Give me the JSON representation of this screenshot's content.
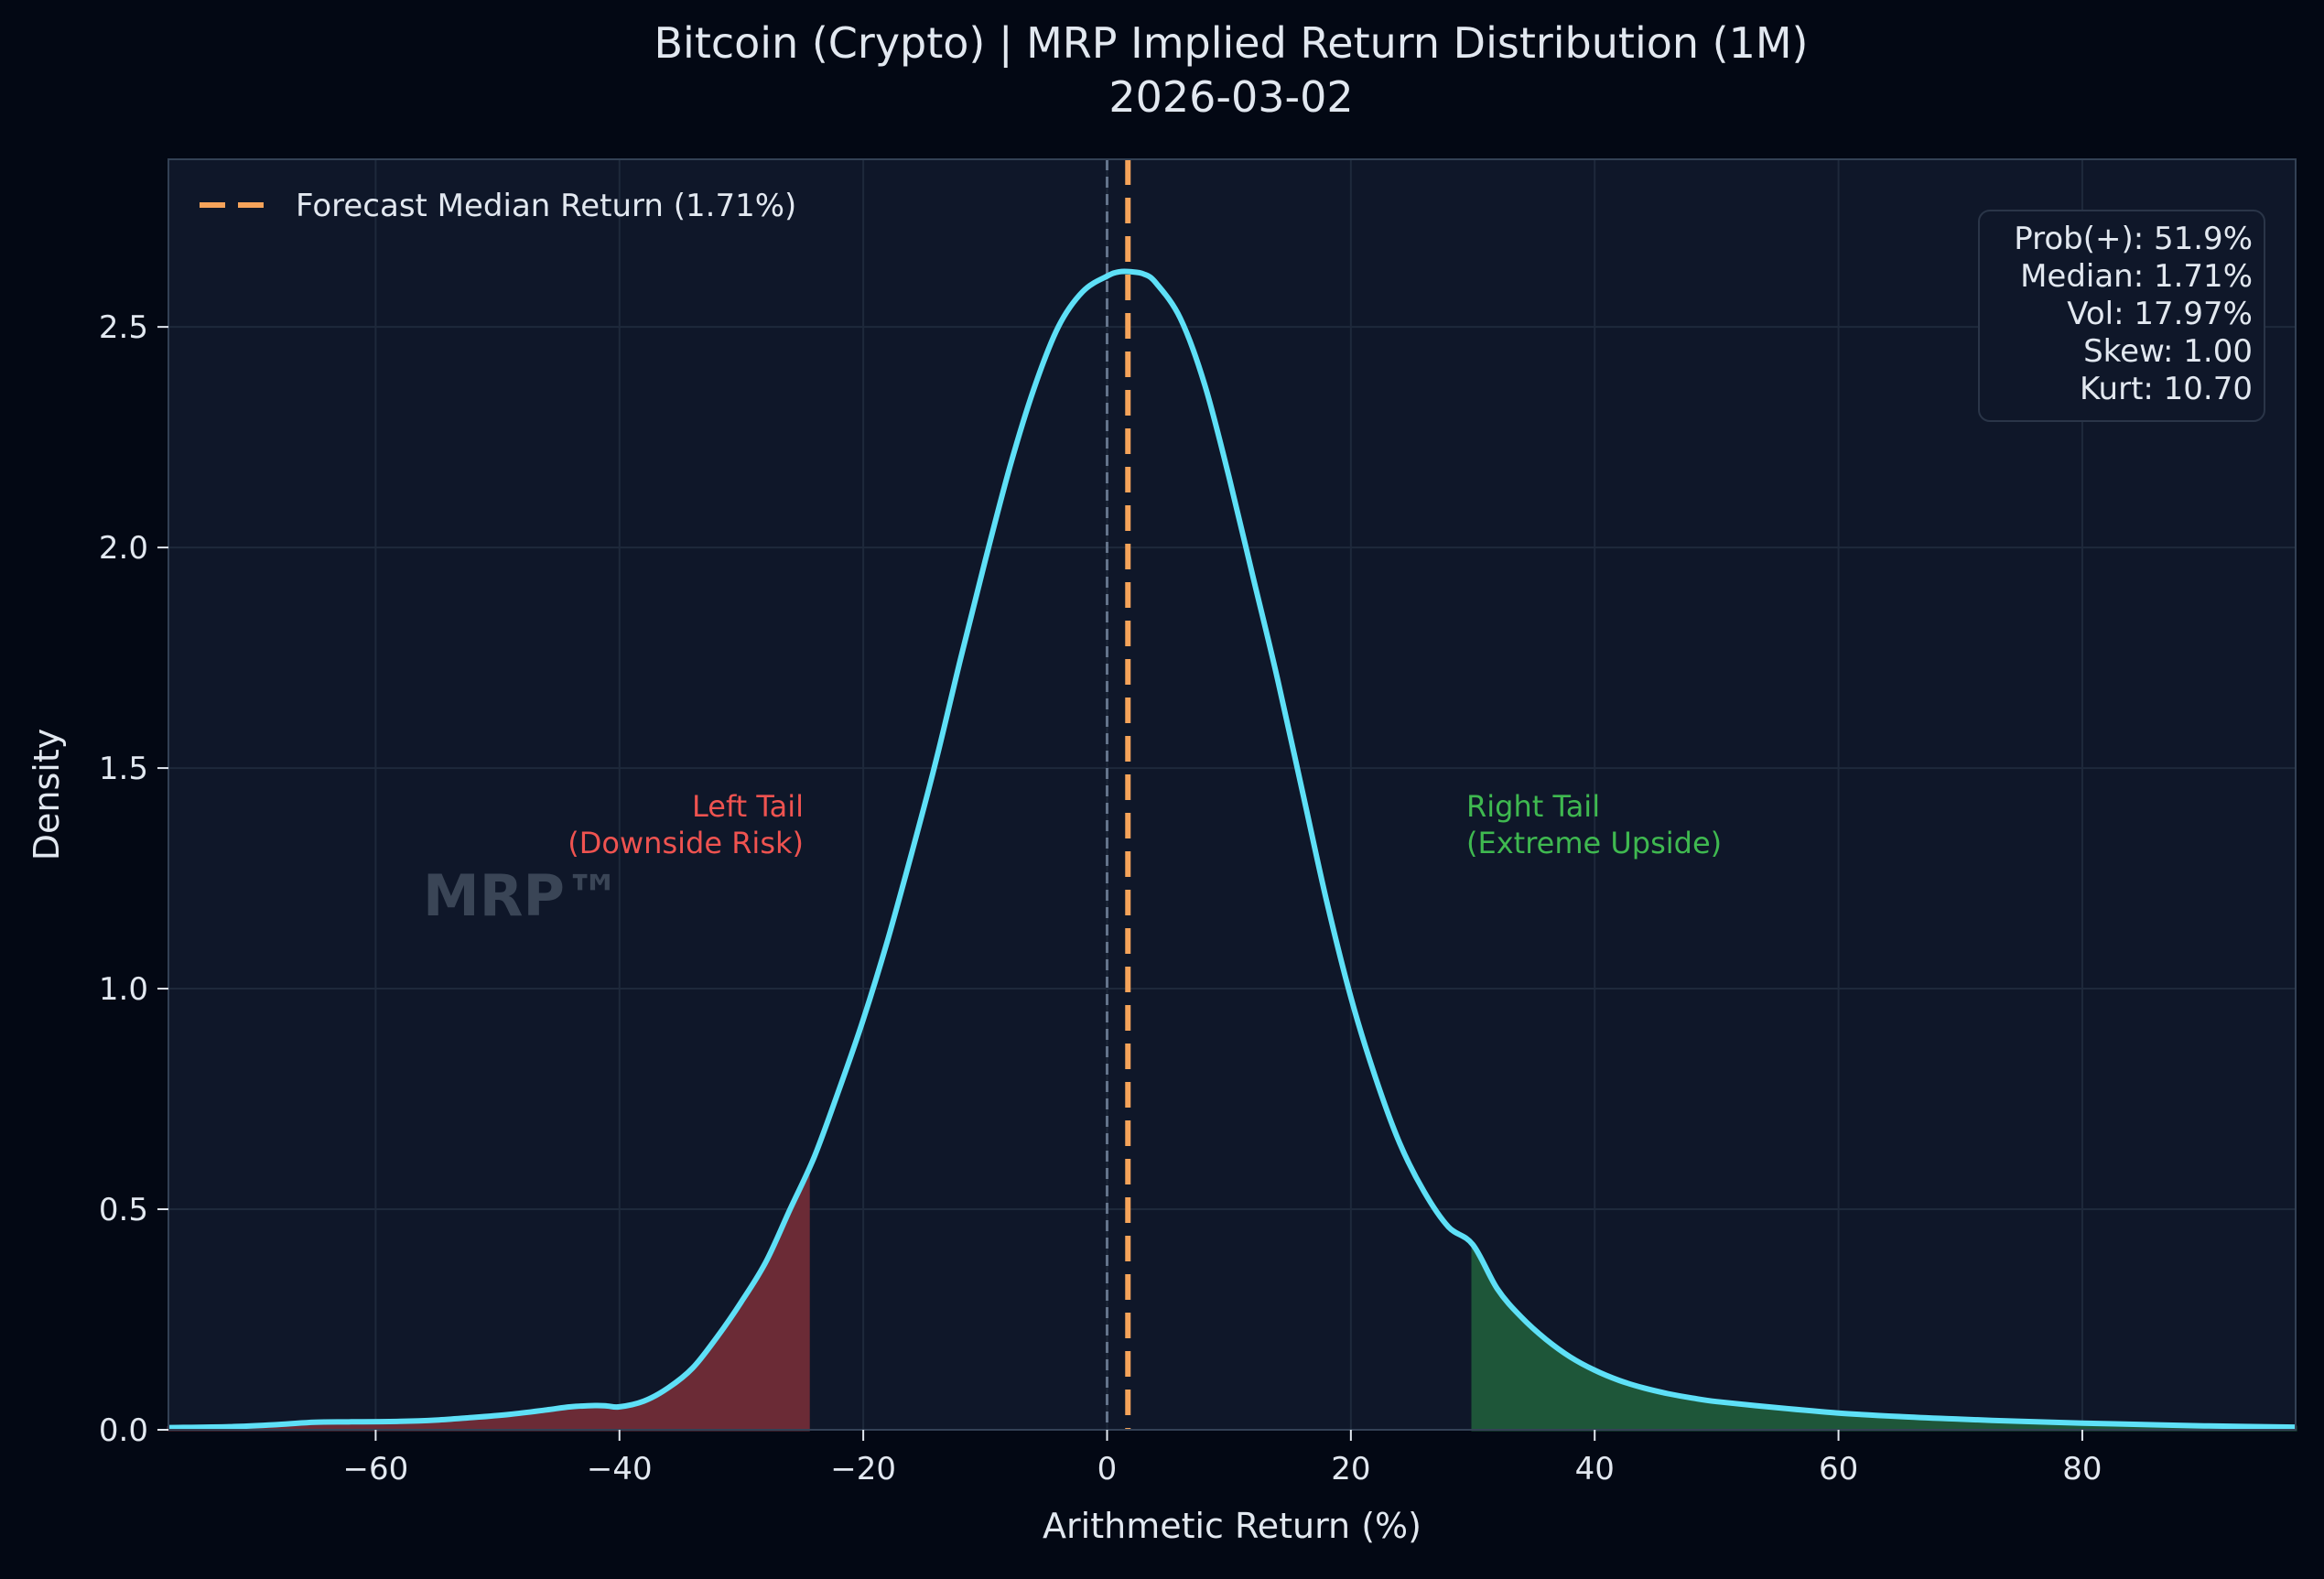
{
  "colors": {
    "page_background": "#030814",
    "plot_background": "#0f1729",
    "grid": "#1e293b",
    "axis": "#334155",
    "text": "#e2e8f0",
    "curve": "#5ee0f7",
    "median_line": "#f5a35a",
    "zero_line": "#64748b",
    "left_tail_fill": "#6b2b36",
    "left_tail_text": "#ef5350",
    "right_tail_fill": "#1e5639",
    "right_tail_text": "#3fb950",
    "watermark": "#3a4556"
  },
  "chart_data": {
    "type": "area",
    "title": "Bitcoin (Crypto) | MRP Implied Return Distribution (1M)",
    "subtitle": "2026-03-02",
    "xlabel": "Arithmetic Return (%)",
    "ylabel": "Density",
    "xlim": [
      -77,
      97.5
    ],
    "ylim": [
      0,
      2.88
    ],
    "grid": true,
    "x_ticks": [
      -60,
      -40,
      -20,
      0,
      20,
      40,
      60,
      80
    ],
    "x_tick_labels": [
      "−60",
      "−40",
      "−20",
      "0",
      "20",
      "40",
      "60",
      "80"
    ],
    "y_ticks": [
      0,
      0.5,
      1.0,
      1.5,
      2.0,
      2.5
    ],
    "y_tick_labels": [
      "0.0",
      "0.5",
      "1.0",
      "1.5",
      "2.0",
      "2.5"
    ],
    "legend": {
      "position": "top-left",
      "entries": [
        {
          "label": "Forecast Median Return (1.71%)",
          "style": "dashed",
          "color": "#f5a35a"
        }
      ]
    },
    "series": [
      {
        "type": "line",
        "points": [
          [
            -77,
            0.005
          ],
          [
            -72,
            0.007
          ],
          [
            -68,
            0.012
          ],
          [
            -65,
            0.017
          ],
          [
            -62,
            0.018
          ],
          [
            -58,
            0.019
          ],
          [
            -55,
            0.022
          ],
          [
            -52,
            0.028
          ],
          [
            -49,
            0.035
          ],
          [
            -46,
            0.045
          ],
          [
            -44,
            0.052
          ],
          [
            -42,
            0.055
          ],
          [
            -41,
            0.054
          ],
          [
            -40,
            0.052
          ],
          [
            -38,
            0.065
          ],
          [
            -36,
            0.095
          ],
          [
            -34,
            0.14
          ],
          [
            -32,
            0.21
          ],
          [
            -30,
            0.29
          ],
          [
            -28,
            0.38
          ],
          [
            -26,
            0.5
          ],
          [
            -24,
            0.62
          ],
          [
            -22,
            0.77
          ],
          [
            -20,
            0.93
          ],
          [
            -18,
            1.11
          ],
          [
            -16,
            1.31
          ],
          [
            -14,
            1.52
          ],
          [
            -12,
            1.75
          ],
          [
            -10,
            1.97
          ],
          [
            -8,
            2.18
          ],
          [
            -6,
            2.36
          ],
          [
            -4,
            2.5
          ],
          [
            -2,
            2.58
          ],
          [
            0,
            2.615
          ],
          [
            1,
            2.625
          ],
          [
            2,
            2.625
          ],
          [
            3,
            2.62
          ],
          [
            4,
            2.6
          ],
          [
            6,
            2.52
          ],
          [
            8,
            2.37
          ],
          [
            10,
            2.16
          ],
          [
            12,
            1.93
          ],
          [
            14,
            1.7
          ],
          [
            16,
            1.45
          ],
          [
            18,
            1.2
          ],
          [
            20,
            0.98
          ],
          [
            22,
            0.8
          ],
          [
            24,
            0.65
          ],
          [
            26,
            0.54
          ],
          [
            28,
            0.46
          ],
          [
            30,
            0.42
          ],
          [
            32,
            0.32
          ],
          [
            34,
            0.255
          ],
          [
            36,
            0.205
          ],
          [
            38,
            0.165
          ],
          [
            40,
            0.135
          ],
          [
            42,
            0.112
          ],
          [
            44,
            0.095
          ],
          [
            46,
            0.082
          ],
          [
            48,
            0.072
          ],
          [
            50,
            0.064
          ],
          [
            55,
            0.05
          ],
          [
            60,
            0.038
          ],
          [
            65,
            0.03
          ],
          [
            70,
            0.024
          ],
          [
            75,
            0.019
          ],
          [
            80,
            0.015
          ],
          [
            85,
            0.012
          ],
          [
            90,
            0.009
          ],
          [
            97.5,
            0.006
          ]
        ]
      }
    ],
    "shaded_regions": [
      {
        "name": "Left Tail",
        "x_from": -77,
        "x_to": -24.5
      },
      {
        "name": "Right Tail",
        "x_from": 30,
        "x_to": 97.5
      }
    ],
    "vertical_lines": [
      {
        "x": 0,
        "style": "dashed",
        "color": "#64748b"
      },
      {
        "x": 1.71,
        "style": "dashed",
        "color": "#f5a35a"
      }
    ],
    "annotations": {
      "left_tail": [
        "Left Tail",
        "(Downside Risk)"
      ],
      "right_tail": [
        "Right Tail",
        "(Extreme Upside)"
      ],
      "watermark": "MRP™"
    },
    "stats_box": {
      "position": "top-right",
      "lines": [
        "Prob(+): 51.9%",
        "Median: 1.71%",
        "Vol: 17.97%",
        "Skew: 1.00",
        "Kurt: 10.70"
      ]
    }
  }
}
